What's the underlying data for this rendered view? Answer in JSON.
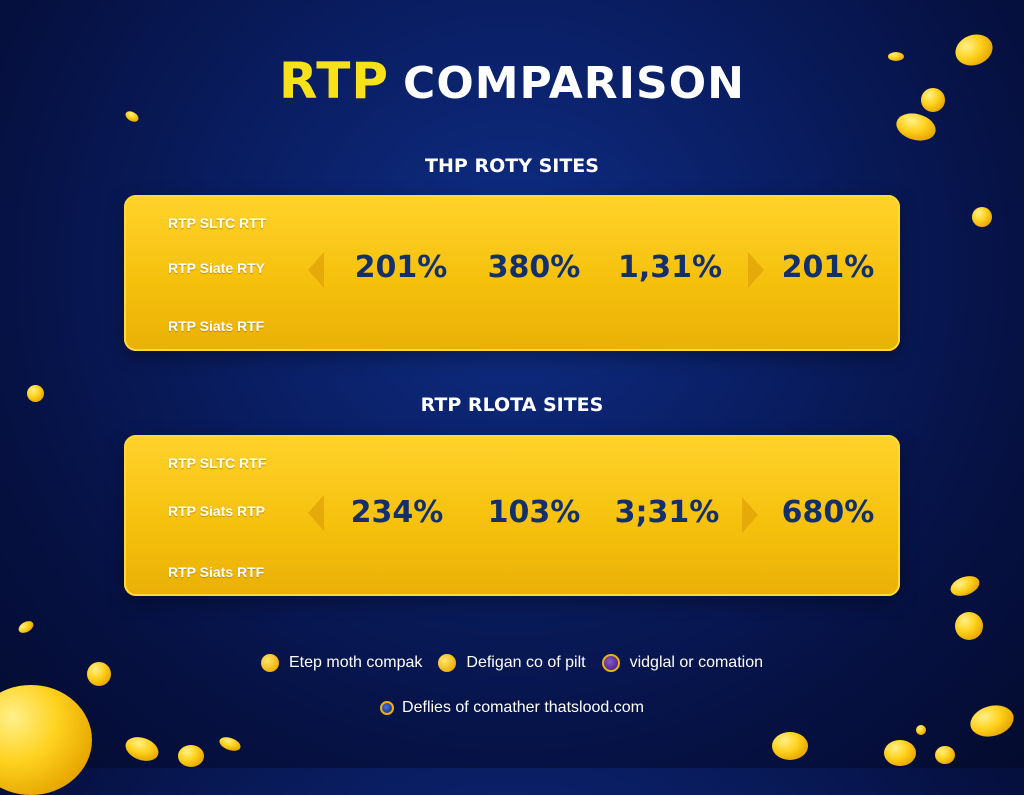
{
  "title": {
    "highlight": "RTP",
    "rest": "COMPARISON"
  },
  "sections": [
    {
      "heading": "THP ROTY SITES",
      "labels": [
        "RTP SLTC RTT",
        "RTP Siate RTY",
        "RTP Siats RTF"
      ],
      "values": [
        "201%",
        "380%",
        "1,31%",
        "201%"
      ]
    },
    {
      "heading": "RTP RLOTA SITES",
      "labels": [
        "RTP SLTC RTF",
        "RTP Siats RTP",
        "RTP Siats RTF"
      ],
      "values": [
        "234%",
        "103%",
        "3;31%",
        "680%"
      ]
    }
  ],
  "legend": {
    "row1": [
      "Etep moth compak",
      "Defigan co of pilt",
      "vidglal or comation"
    ],
    "row2": [
      "Deflies of comather thatslood.com"
    ]
  },
  "colors": {
    "background": "#0a1f66",
    "card_gold": "#f6c10d",
    "title_yellow": "#f7e21a",
    "value_navy": "#14306a"
  },
  "icons": [
    "gold-coin-icon",
    "purple-coin-icon",
    "blue-coin-icon"
  ]
}
